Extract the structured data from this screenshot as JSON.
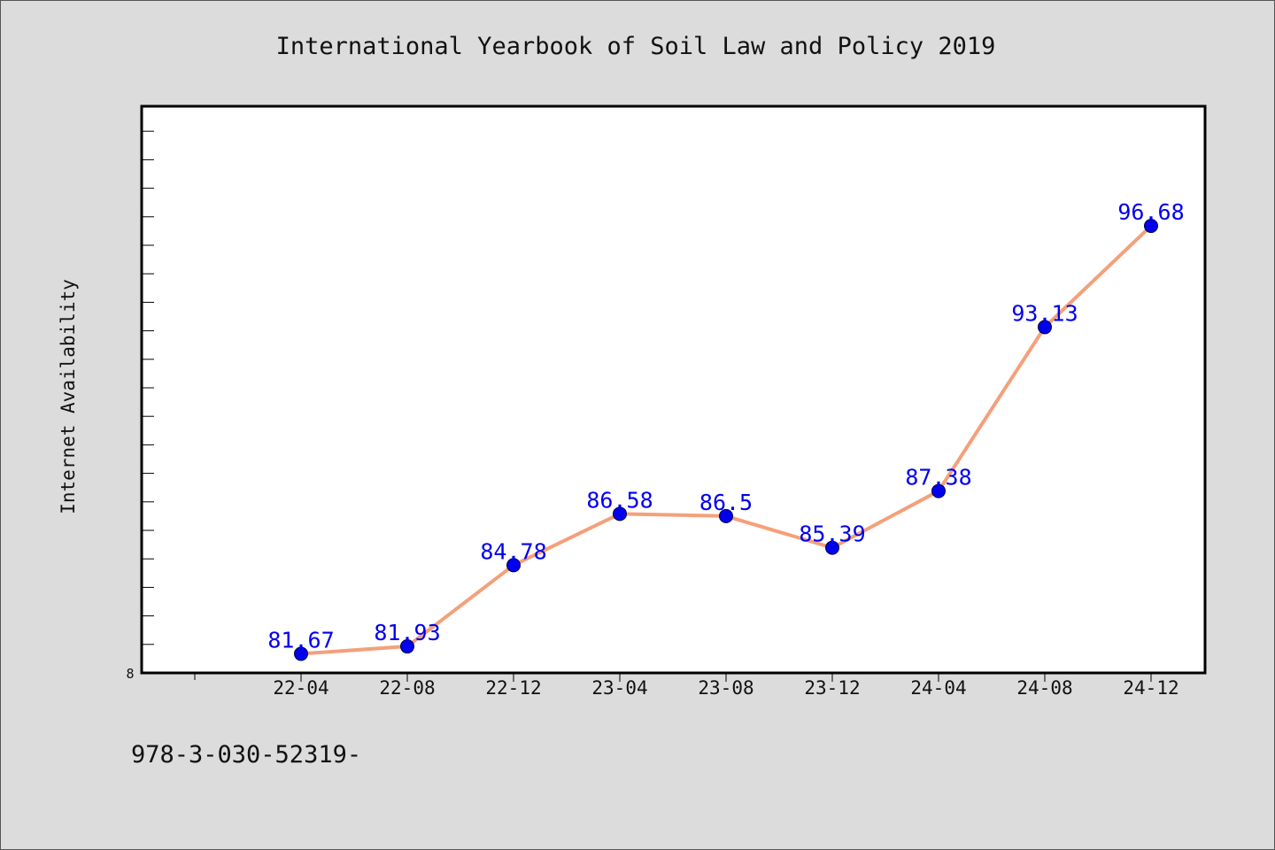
{
  "chart_data": {
    "type": "line",
    "title": "International Yearbook of Soil Law and Policy 2019",
    "xlabel": "",
    "ylabel": "Internet Availability",
    "categories": [
      "22-04",
      "22-08",
      "22-12",
      "23-04",
      "23-08",
      "23-12",
      "24-04",
      "24-08",
      "24-12"
    ],
    "series": [
      {
        "values": [
          81.67,
          81.93,
          84.78,
          86.58,
          86.5,
          85.39,
          87.38,
          93.13,
          96.68
        ],
        "data_labels": [
          "81.67",
          "81.93",
          "84.78",
          "86.58",
          "86.5",
          "85.39",
          "87.38",
          "93.13",
          "96.68"
        ]
      }
    ],
    "ylim": [
      81.0,
      101.0
    ],
    "y_tick_labels": [
      "8"
    ],
    "grid": false,
    "legend": "none",
    "colors": {
      "line": "#f4a07a",
      "marker": "#0000ee",
      "labels": "#0000ee",
      "background": "#dcdcdc",
      "plot_background": "#ffffff"
    },
    "footnote": "978-3-030-52319-"
  }
}
